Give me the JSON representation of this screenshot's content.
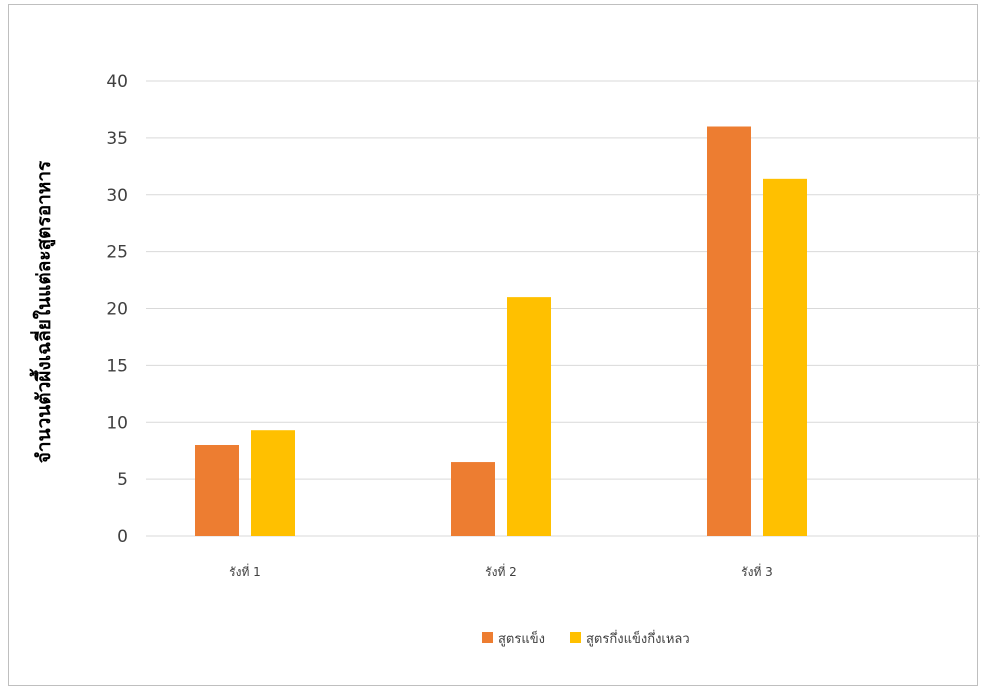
{
  "chart_data": {
    "type": "bar",
    "title": "",
    "xlabel": "",
    "ylabel": "จำนวนตัวผึ้งเฉลี่ยในแต่ละสูตรอาหาร",
    "categories": [
      "รังที่ 1",
      "รังที่ 2",
      "รังที่ 3"
    ],
    "series": [
      {
        "name": "สูตรแข็ง",
        "values": [
          8,
          6.5,
          36
        ],
        "color": "#ed7d31"
      },
      {
        "name": "สูตรกึ่งแข็งกึ่งเหลว",
        "values": [
          9.3,
          21,
          31.4
        ],
        "color": "#ffc000"
      }
    ],
    "ylim": [
      0,
      40
    ],
    "yticks": [
      0,
      5,
      10,
      15,
      20,
      25,
      30,
      35,
      40
    ],
    "grid": true,
    "legend_position": "bottom"
  }
}
